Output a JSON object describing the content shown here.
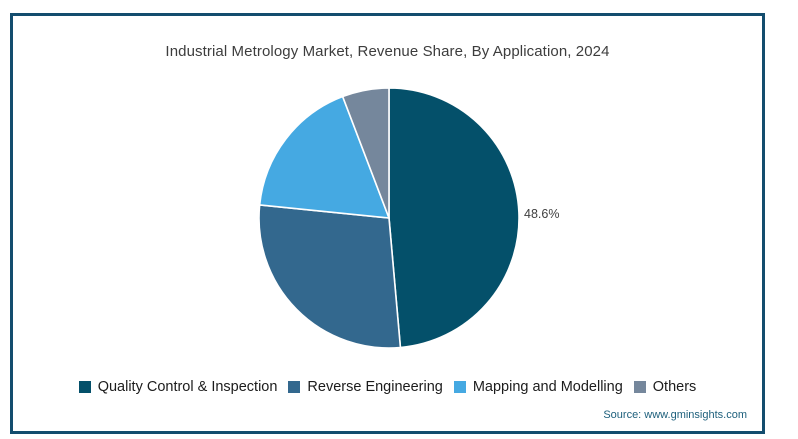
{
  "title": "Industrial Metrology Market, Revenue Share, By Application, 2024",
  "source": "Source: www.gminsights.com",
  "colors": {
    "card_border": "#134d6e",
    "background": "#ffffff",
    "title_text": "#3d3d3d",
    "legend_text": "#1c1c1c",
    "value_label_text": "#3f3f3f",
    "source_text": "#1e607c",
    "slice_divider": "#ffffff"
  },
  "chart_data": {
    "type": "pie",
    "title": "Industrial Metrology Market, Revenue Share, By Application, 2024",
    "start_angle_deg": 0,
    "direction": "clockwise",
    "legend_position": "bottom",
    "slices": [
      {
        "label": "Quality Control & Inspection",
        "value": 48.6,
        "color": "#04506a",
        "percent_label": "48.6%"
      },
      {
        "label": "Reverse Engineering",
        "value": 28.0,
        "color": "#33688e"
      },
      {
        "label": "Mapping and Modelling",
        "value": 17.6,
        "color": "#45a9e2"
      },
      {
        "label": "Others",
        "value": 5.8,
        "color": "#75879c"
      }
    ],
    "annotations": [
      {
        "text": "48.6%",
        "attached_to": "Quality Control & Inspection",
        "position": "outside-right"
      }
    ]
  }
}
